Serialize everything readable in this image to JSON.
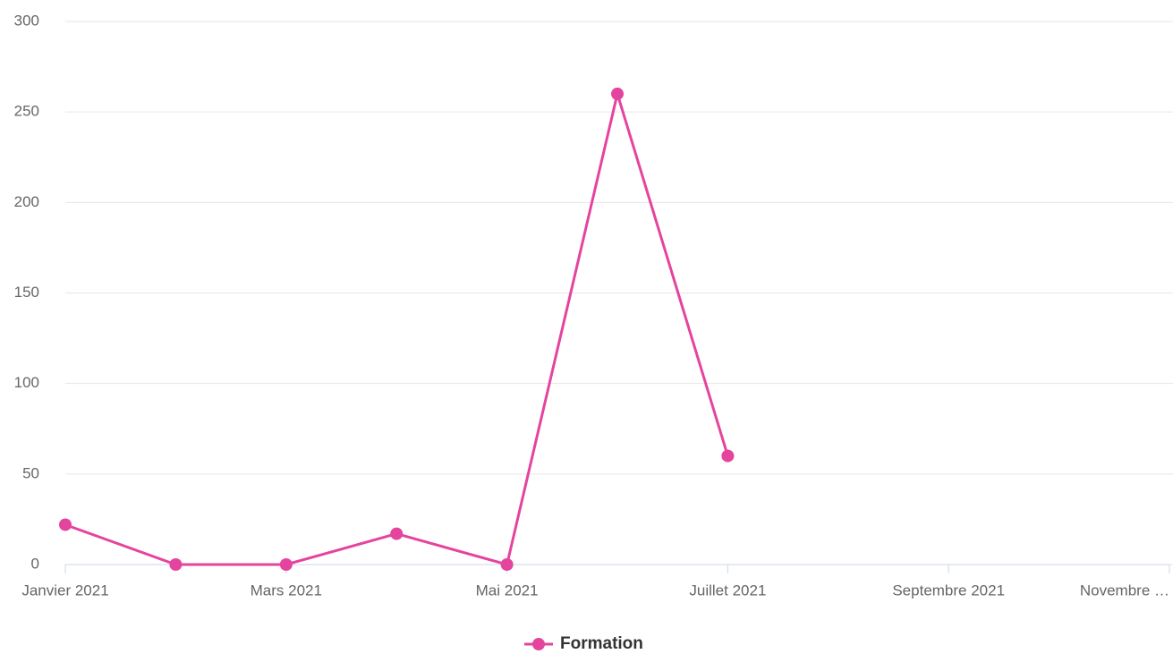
{
  "chart_data": {
    "type": "line",
    "categories": [
      "Janvier 2021",
      null,
      "Mars 2021",
      null,
      "Mai 2021",
      null,
      "Juillet 2021",
      null,
      "Septembre 2021",
      null,
      "Novembre …"
    ],
    "series": [
      {
        "name": "Formation",
        "color": "#e5449e",
        "values": [
          22,
          0,
          0,
          17,
          0,
          260,
          60,
          null,
          null,
          null,
          null
        ]
      }
    ],
    "ylim": [
      0,
      300
    ],
    "yticks": [
      0,
      50,
      100,
      150,
      200,
      250,
      300
    ],
    "grid": true,
    "legend": "bottom"
  }
}
